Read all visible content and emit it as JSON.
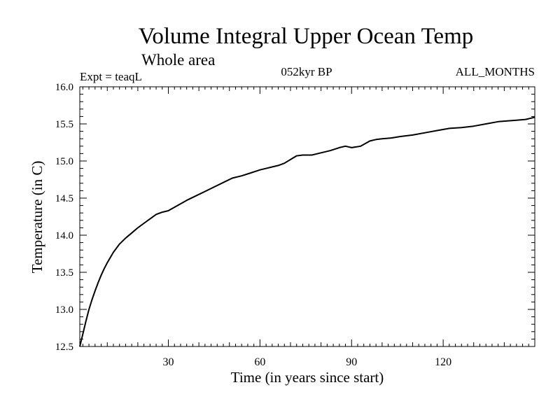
{
  "chart_data": {
    "type": "line",
    "title": "Volume Integral Upper Ocean Temp",
    "subtitle": "Whole area",
    "experiment_label": "Expt = teaqL",
    "period_label": "052kyr BP",
    "months_label": "ALL_MONTHS",
    "xlabel": "Time (in years since start)",
    "ylabel": "Temperature (in C)",
    "xlim": [
      1,
      150
    ],
    "ylim": [
      12.5,
      16.0
    ],
    "x_ticks": [
      30,
      60,
      90,
      120
    ],
    "y_ticks": [
      12.5,
      13.0,
      13.5,
      14.0,
      14.5,
      15.0,
      15.5,
      16.0
    ],
    "grid": false,
    "line_color": "#000000",
    "series": [
      {
        "name": "Volume integral upper ocean temperature",
        "x": [
          1,
          2,
          3,
          4,
          5,
          6,
          7,
          8,
          9,
          10,
          12,
          14,
          16,
          18,
          20,
          22,
          24,
          26,
          28,
          30,
          33,
          36,
          39,
          42,
          45,
          48,
          51,
          54,
          57,
          60,
          63,
          66,
          68,
          70,
          72,
          74,
          77,
          80,
          83,
          86,
          88,
          90,
          93,
          96,
          98,
          100,
          103,
          106,
          110,
          114,
          118,
          122,
          126,
          130,
          134,
          138,
          141,
          144,
          147,
          150
        ],
        "values": [
          12.5,
          12.67,
          12.84,
          13.0,
          13.13,
          13.25,
          13.36,
          13.46,
          13.55,
          13.63,
          13.77,
          13.88,
          13.96,
          14.03,
          14.1,
          14.16,
          14.22,
          14.28,
          14.31,
          14.33,
          14.4,
          14.47,
          14.53,
          14.59,
          14.65,
          14.71,
          14.77,
          14.8,
          14.84,
          14.88,
          14.91,
          14.94,
          14.97,
          15.02,
          15.07,
          15.08,
          15.08,
          15.11,
          15.14,
          15.18,
          15.2,
          15.18,
          15.2,
          15.27,
          15.29,
          15.3,
          15.31,
          15.33,
          15.35,
          15.38,
          15.41,
          15.44,
          15.45,
          15.47,
          15.5,
          15.53,
          15.54,
          15.55,
          15.56,
          15.59
        ]
      }
    ]
  }
}
